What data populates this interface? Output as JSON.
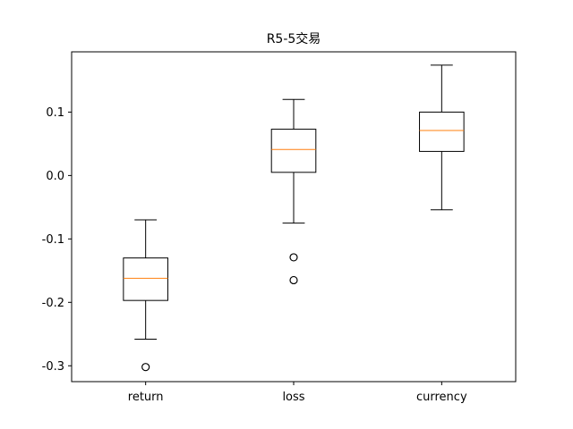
{
  "chart_data": {
    "type": "box",
    "title": "R5-5交易",
    "categories": [
      "return",
      "loss",
      "currency"
    ],
    "ylim": [
      -0.325,
      0.195
    ],
    "yticks": [
      0.1,
      0.0,
      -0.1,
      -0.2,
      -0.3
    ],
    "ytick_labels": [
      "0.1",
      "0.0",
      "-0.1",
      "-0.2",
      "-0.3"
    ],
    "boxes": [
      {
        "category": "return",
        "whisker_low": -0.258,
        "q1": -0.197,
        "median": -0.162,
        "q3": -0.13,
        "whisker_high": -0.07,
        "outliers": [
          -0.302
        ]
      },
      {
        "category": "loss",
        "whisker_low": -0.075,
        "q1": 0.005,
        "median": 0.041,
        "q3": 0.073,
        "whisker_high": 0.12,
        "outliers": [
          -0.129,
          -0.165
        ]
      },
      {
        "category": "currency",
        "whisker_low": -0.054,
        "q1": 0.038,
        "median": 0.071,
        "q3": 0.1,
        "whisker_high": 0.174,
        "outliers": []
      }
    ],
    "grid": false,
    "colors": {
      "box": "#000000",
      "median": "#ff7f0e"
    }
  }
}
